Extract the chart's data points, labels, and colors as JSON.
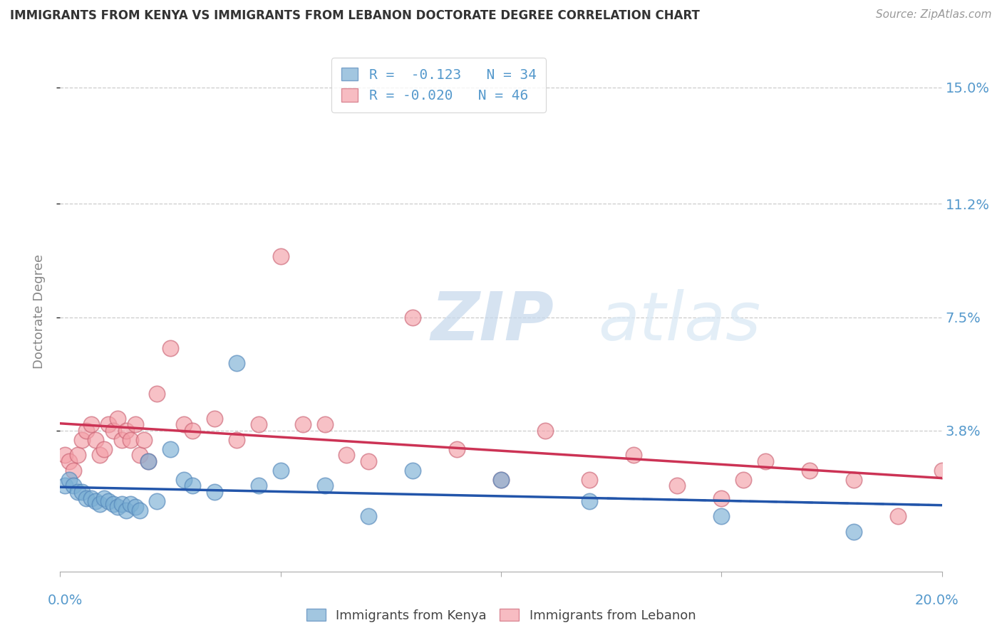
{
  "title": "IMMIGRANTS FROM KENYA VS IMMIGRANTS FROM LEBANON DOCTORATE DEGREE CORRELATION CHART",
  "source": "Source: ZipAtlas.com",
  "ylabel": "Doctorate Degree",
  "ytick_labels": [
    "3.8%",
    "7.5%",
    "11.2%",
    "15.0%"
  ],
  "ytick_values": [
    0.038,
    0.075,
    0.112,
    0.15
  ],
  "xlim": [
    0.0,
    0.2
  ],
  "ylim": [
    -0.008,
    0.162
  ],
  "kenya_color": "#7BAFD4",
  "kenya_edge": "#5588BB",
  "lebanon_color": "#F4A0A8",
  "lebanon_edge": "#CC6677",
  "kenya_line_color": "#2255AA",
  "lebanon_line_color": "#CC3355",
  "legend_R_kenya": "R =  -0.123",
  "legend_N_kenya": "N = 34",
  "legend_R_lebanon": "R = -0.020",
  "legend_N_lebanon": "N = 46",
  "watermark_zip": "ZIP",
  "watermark_atlas": "atlas",
  "axis_color": "#AAAAAA",
  "grid_color": "#CCCCCC",
  "right_tick_color": "#5599CC",
  "kenya_x": [
    0.001,
    0.002,
    0.003,
    0.004,
    0.005,
    0.006,
    0.007,
    0.008,
    0.009,
    0.01,
    0.011,
    0.012,
    0.013,
    0.014,
    0.015,
    0.016,
    0.017,
    0.018,
    0.02,
    0.022,
    0.025,
    0.028,
    0.03,
    0.035,
    0.04,
    0.045,
    0.05,
    0.06,
    0.07,
    0.08,
    0.1,
    0.12,
    0.15,
    0.18
  ],
  "kenya_y": [
    0.02,
    0.022,
    0.02,
    0.018,
    0.018,
    0.016,
    0.016,
    0.015,
    0.014,
    0.016,
    0.015,
    0.014,
    0.013,
    0.014,
    0.012,
    0.014,
    0.013,
    0.012,
    0.028,
    0.015,
    0.032,
    0.022,
    0.02,
    0.018,
    0.06,
    0.02,
    0.025,
    0.02,
    0.01,
    0.025,
    0.022,
    0.015,
    0.01,
    0.005
  ],
  "lebanon_x": [
    0.001,
    0.002,
    0.003,
    0.004,
    0.005,
    0.006,
    0.007,
    0.008,
    0.009,
    0.01,
    0.011,
    0.012,
    0.013,
    0.014,
    0.015,
    0.016,
    0.017,
    0.018,
    0.019,
    0.02,
    0.022,
    0.025,
    0.028,
    0.03,
    0.035,
    0.04,
    0.045,
    0.05,
    0.055,
    0.06,
    0.065,
    0.07,
    0.08,
    0.09,
    0.1,
    0.11,
    0.12,
    0.13,
    0.14,
    0.15,
    0.155,
    0.16,
    0.17,
    0.18,
    0.19,
    0.2
  ],
  "lebanon_y": [
    0.03,
    0.028,
    0.025,
    0.03,
    0.035,
    0.038,
    0.04,
    0.035,
    0.03,
    0.032,
    0.04,
    0.038,
    0.042,
    0.035,
    0.038,
    0.035,
    0.04,
    0.03,
    0.035,
    0.028,
    0.05,
    0.065,
    0.04,
    0.038,
    0.042,
    0.035,
    0.04,
    0.095,
    0.04,
    0.04,
    0.03,
    0.028,
    0.075,
    0.032,
    0.022,
    0.038,
    0.022,
    0.03,
    0.02,
    0.016,
    0.022,
    0.028,
    0.025,
    0.022,
    0.01,
    0.025
  ]
}
